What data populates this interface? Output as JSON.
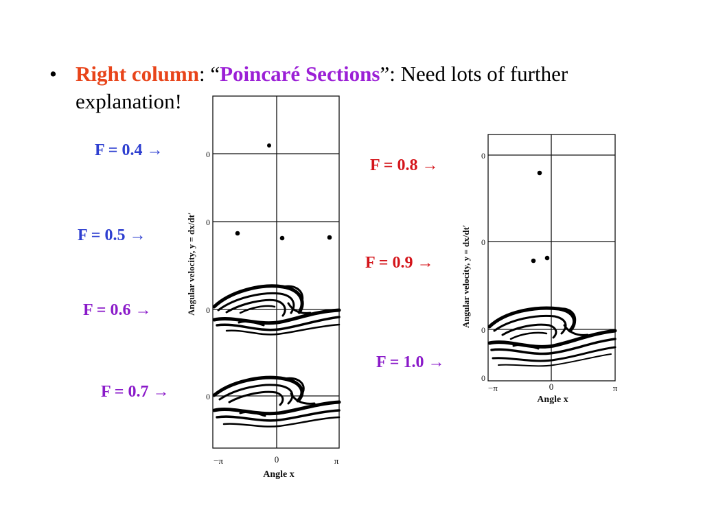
{
  "bullet": {
    "marker": "•",
    "label": "Right column",
    "sep": ": “",
    "title": "Poincaré Sections",
    "rest": "”: Need lots of further explanation!"
  },
  "labels": {
    "f04": "F = 0.4 →",
    "f05": "F = 0.5 →",
    "f06": "F = 0.6 →",
    "f07": "F = 0.7 →",
    "f08": "F = 0.8 →",
    "f09": "F = 0.9 →",
    "f10": "F = 1.0 →"
  },
  "figure": {
    "ylabel": "Angular velocity, y = dx/dt′",
    "xlabel": "Angle x",
    "tick_zero": "0",
    "x_ticks": [
      "−π",
      "0",
      "π"
    ]
  },
  "colors": {
    "blue": "#2e3fd0",
    "purple": "#8a1ac9",
    "red": "#d4141a",
    "orange_red": "#e8441a"
  }
}
